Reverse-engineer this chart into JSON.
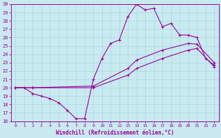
{
  "xlabel": "Windchill (Refroidissement éolien,°C)",
  "xlim": [
    -0.5,
    23.5
  ],
  "ylim": [
    16,
    30
  ],
  "xticks": [
    0,
    1,
    2,
    3,
    4,
    5,
    6,
    7,
    8,
    9,
    10,
    11,
    12,
    13,
    14,
    15,
    16,
    17,
    18,
    19,
    20,
    21,
    22,
    23
  ],
  "yticks": [
    16,
    17,
    18,
    19,
    20,
    21,
    22,
    23,
    24,
    25,
    26,
    27,
    28,
    29,
    30
  ],
  "background_color": "#c9eaf0",
  "grid_color": "#a8d8e0",
  "line_color": "#990099",
  "line1_x": [
    0,
    1,
    2,
    3,
    4,
    5,
    6,
    7,
    8,
    9,
    10,
    11,
    12,
    13,
    14,
    15,
    16,
    17,
    18,
    19,
    20,
    21,
    22,
    23
  ],
  "line1_y": [
    20.0,
    20.0,
    19.3,
    19.0,
    18.7,
    18.2,
    17.3,
    16.3,
    16.3,
    21.0,
    23.5,
    25.3,
    25.7,
    28.5,
    30.0,
    29.3,
    29.5,
    27.3,
    27.7,
    26.3,
    26.3,
    26.0,
    23.5,
    22.7
  ],
  "line2_x": [
    0,
    2,
    9,
    13,
    14,
    17,
    20,
    21,
    23
  ],
  "line2_y": [
    20.0,
    20.0,
    20.2,
    22.3,
    23.3,
    24.5,
    25.3,
    25.2,
    23.0
  ],
  "line3_x": [
    0,
    2,
    9,
    13,
    14,
    17,
    20,
    21,
    23
  ],
  "line3_y": [
    20.0,
    20.0,
    20.0,
    21.5,
    22.3,
    23.5,
    24.5,
    24.7,
    22.5
  ]
}
